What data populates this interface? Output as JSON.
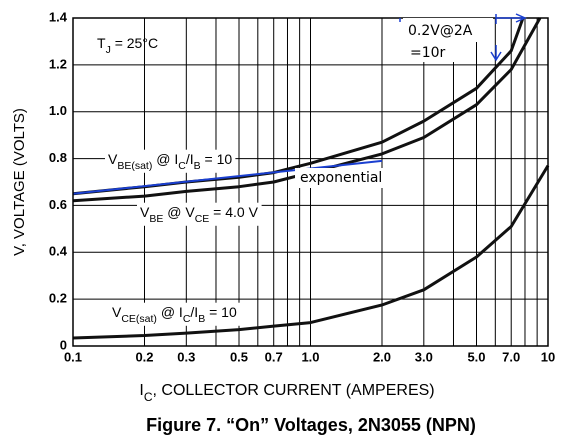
{
  "chart_data": {
    "type": "line",
    "xscale": "log",
    "grid": true,
    "xlim": [
      0.1,
      10
    ],
    "ylim": [
      0,
      1.4
    ],
    "xticks": [
      0.1,
      0.2,
      0.3,
      0.5,
      0.7,
      {
        "value": 1,
        "label": "1.0"
      },
      {
        "value": 2,
        "label": "2.0"
      },
      {
        "value": 3,
        "label": "3.0"
      },
      {
        "value": 5,
        "label": "5.0"
      },
      {
        "value": 7,
        "label": "7.0"
      },
      10
    ],
    "x_minor_grid": [
      0.4,
      0.6,
      0.8,
      0.9,
      4,
      6,
      8,
      9
    ],
    "yticks": [
      0,
      0.2,
      0.4,
      0.6,
      0.8,
      {
        "value": 1,
        "label": "1.0"
      },
      1.2,
      1.4
    ],
    "y_label": "V, VOLTAGE (VOLTS)",
    "x_label": [
      {
        "text": "I"
      },
      {
        "text": "C",
        "sub": true
      },
      {
        "text": ", COLLECTOR CURRENT (AMPERES)"
      }
    ],
    "caption": "Figure 7. “On” Voltages, 2N3055 (NPN)",
    "series": [
      {
        "color": "#111111",
        "x": [
          0.1,
          0.2,
          0.3,
          0.5,
          0.7,
          1.0,
          2.0,
          3.0,
          5.0,
          7.0,
          7.85
        ],
        "values": [
          0.65,
          0.68,
          0.7,
          0.72,
          0.74,
          0.78,
          0.87,
          0.96,
          1.1,
          1.26,
          1.4
        ]
      },
      {
        "color": "#111111",
        "x": [
          0.1,
          0.2,
          0.3,
          0.5,
          0.7,
          1.0,
          2.0,
          3.0,
          5.0,
          7.0,
          9.25
        ],
        "values": [
          0.62,
          0.64,
          0.66,
          0.68,
          0.7,
          0.74,
          0.82,
          0.89,
          1.03,
          1.18,
          1.4
        ]
      },
      {
        "color": "#111111",
        "x": [
          0.1,
          0.2,
          0.3,
          0.5,
          0.7,
          1.0,
          2.0,
          3.0,
          5.0,
          7.0,
          10
        ],
        "values": [
          0.034,
          0.045,
          0.055,
          0.07,
          0.085,
          0.1,
          0.175,
          0.24,
          0.38,
          0.51,
          0.77
        ]
      },
      {
        "color": "#1a3fd0",
        "x": [
          0.1,
          2.0
        ],
        "values": [
          0.65,
          0.79
        ]
      }
    ],
    "annotations": [
      {
        "parts": [
          {
            "text": "T"
          },
          {
            "text": "J",
            "sub": true
          },
          {
            "text": " = 25°C"
          }
        ]
      },
      {
        "parts": [
          {
            "text": "V"
          },
          {
            "text": "BE(sat)",
            "sub": true
          },
          {
            "text": " @ I"
          },
          {
            "text": "C",
            "sub": true
          },
          {
            "text": "/I"
          },
          {
            "text": "B",
            "sub": true
          },
          {
            "text": " = 10"
          }
        ]
      },
      {
        "parts": [
          {
            "text": "V"
          },
          {
            "text": "BE",
            "sub": true
          },
          {
            "text": " @ V"
          },
          {
            "text": "CE",
            "sub": true
          },
          {
            "text": " = 4.0 V"
          }
        ]
      },
      {
        "parts": [
          {
            "text": "V"
          },
          {
            "text": "CE(sat)",
            "sub": true
          },
          {
            "text": " @ I"
          },
          {
            "text": "C",
            "sub": true
          },
          {
            "text": "/I"
          },
          {
            "text": "B",
            "sub": true
          },
          {
            "text": " = 10"
          }
        ]
      },
      {
        "color": "#1a3fd0",
        "parts": [
          {
            "text": "0.2V@2A"
          }
        ]
      },
      {
        "color": "#1a3fd0",
        "parts": [
          {
            "text": "=10r"
          }
        ]
      },
      {
        "color": "#1a3fd0",
        "parts": [
          {
            "text": "exponential"
          }
        ]
      }
    ]
  }
}
